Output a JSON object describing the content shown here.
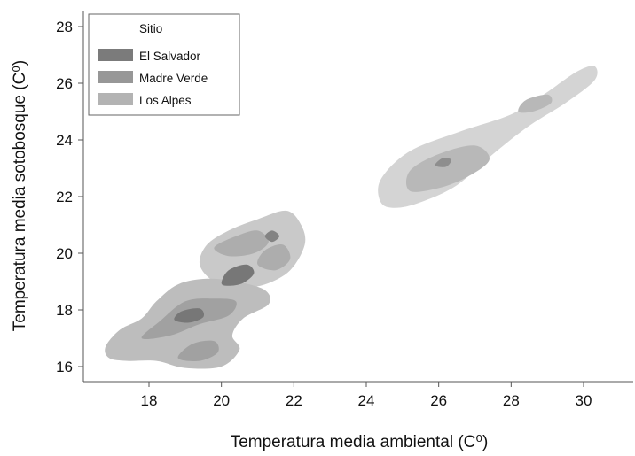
{
  "chart_data": {
    "type": "contour",
    "xlabel": "Temperatura media ambiental (C⁰)",
    "ylabel": "Temperatura media sotobosque (C⁰)",
    "xlim": [
      16.5,
      31.3
    ],
    "ylim": [
      15.5,
      28.6
    ],
    "xticks": [
      18,
      20,
      22,
      24,
      26,
      28,
      30
    ],
    "yticks": [
      16,
      18,
      20,
      22,
      24,
      26,
      28
    ],
    "grid": false,
    "legend": {
      "title": "Sitio",
      "placement": "top-left",
      "entries": [
        {
          "label": "El Salvador",
          "color": "#7b7b7b"
        },
        {
          "label": "Madre Verde",
          "color": "#979797"
        },
        {
          "label": "Los Alpes",
          "color": "#b3b3b3"
        }
      ]
    },
    "series": [
      {
        "name": "Los Alpes",
        "color": "#d4d4d4",
        "contours": [
          {
            "level": 1,
            "points": [
              [
                24.4,
                21.8
              ],
              [
                24.4,
                22.6
              ],
              [
                25.2,
                23.6
              ],
              [
                26.6,
                24.3
              ],
              [
                28.0,
                24.9
              ],
              [
                28.9,
                25.6
              ],
              [
                29.8,
                26.4
              ],
              [
                30.3,
                26.6
              ],
              [
                30.3,
                26.1
              ],
              [
                29.5,
                25.3
              ],
              [
                28.5,
                24.5
              ],
              [
                27.5,
                23.5
              ],
              [
                26.5,
                22.4
              ],
              [
                25.5,
                21.8
              ],
              [
                24.8,
                21.6
              ]
            ]
          },
          {
            "level": 2,
            "points": [
              [
                25.2,
                22.2
              ],
              [
                25.2,
                22.9
              ],
              [
                26.0,
                23.5
              ],
              [
                27.0,
                23.8
              ],
              [
                27.4,
                23.3
              ],
              [
                26.8,
                22.7
              ],
              [
                26.0,
                22.3
              ]
            ]
          },
          {
            "level": 2,
            "points": [
              [
                28.2,
                25.0
              ],
              [
                28.4,
                25.4
              ],
              [
                29.0,
                25.6
              ],
              [
                29.1,
                25.3
              ],
              [
                28.6,
                25.0
              ]
            ]
          },
          {
            "level": 3,
            "points": [
              [
                25.9,
                23.1
              ],
              [
                26.1,
                23.35
              ],
              [
                26.35,
                23.3
              ],
              [
                26.2,
                23.05
              ]
            ]
          }
        ]
      },
      {
        "name": "Madre Verde",
        "color": "#c9c9c9",
        "contours": [
          {
            "level": 1,
            "points": [
              [
                19.4,
                19.6
              ],
              [
                19.6,
                20.3
              ],
              [
                20.2,
                20.8
              ],
              [
                21.0,
                21.2
              ],
              [
                21.8,
                21.5
              ],
              [
                22.2,
                21.0
              ],
              [
                22.3,
                20.3
              ],
              [
                21.9,
                19.4
              ],
              [
                21.2,
                18.9
              ],
              [
                20.5,
                18.8
              ],
              [
                19.8,
                19.0
              ]
            ]
          },
          {
            "level": 2,
            "points": [
              [
                19.8,
                20.2
              ],
              [
                20.4,
                20.6
              ],
              [
                21.0,
                20.8
              ],
              [
                21.3,
                20.4
              ],
              [
                20.9,
                20.0
              ],
              [
                20.2,
                19.9
              ]
            ]
          },
          {
            "level": 2,
            "points": [
              [
                21.0,
                19.6
              ],
              [
                21.2,
                20.1
              ],
              [
                21.7,
                20.3
              ],
              [
                21.9,
                19.8
              ],
              [
                21.5,
                19.4
              ]
            ]
          },
          {
            "level": 3,
            "points": [
              [
                21.2,
                20.6
              ],
              [
                21.4,
                20.8
              ],
              [
                21.6,
                20.6
              ],
              [
                21.4,
                20.4
              ]
            ]
          }
        ]
      },
      {
        "name": "El Salvador",
        "color": "#bdbdbd",
        "contours": [
          {
            "level": 1,
            "points": [
              [
                16.8,
                16.7
              ],
              [
                17.2,
                17.3
              ],
              [
                17.8,
                17.7
              ],
              [
                18.2,
                18.3
              ],
              [
                18.8,
                18.9
              ],
              [
                19.6,
                19.1
              ],
              [
                20.4,
                19.0
              ],
              [
                21.2,
                18.7
              ],
              [
                21.3,
                18.2
              ],
              [
                20.6,
                17.7
              ],
              [
                20.3,
                17.1
              ],
              [
                20.5,
                16.6
              ],
              [
                20.0,
                16.0
              ],
              [
                19.0,
                15.95
              ],
              [
                18.2,
                16.2
              ],
              [
                17.4,
                16.2
              ],
              [
                16.9,
                16.3
              ]
            ]
          },
          {
            "level": 2,
            "points": [
              [
                17.8,
                17.0
              ],
              [
                18.3,
                17.6
              ],
              [
                19.0,
                18.3
              ],
              [
                19.8,
                18.4
              ],
              [
                20.4,
                18.3
              ],
              [
                20.2,
                17.8
              ],
              [
                19.4,
                17.5
              ],
              [
                18.6,
                17.1
              ]
            ]
          },
          {
            "level": 2,
            "points": [
              [
                18.8,
                16.3
              ],
              [
                19.2,
                16.8
              ],
              [
                19.8,
                16.9
              ],
              [
                19.9,
                16.5
              ],
              [
                19.4,
                16.2
              ]
            ]
          },
          {
            "level": 3,
            "points": [
              [
                18.7,
                17.65
              ],
              [
                18.9,
                17.95
              ],
              [
                19.4,
                18.05
              ],
              [
                19.5,
                17.75
              ],
              [
                19.1,
                17.55
              ]
            ]
          },
          {
            "level": 3,
            "points": [
              [
                20.0,
                18.95
              ],
              [
                20.2,
                19.4
              ],
              [
                20.7,
                19.6
              ],
              [
                20.9,
                19.3
              ],
              [
                20.6,
                18.95
              ],
              [
                20.2,
                18.85
              ]
            ]
          }
        ]
      }
    ]
  }
}
